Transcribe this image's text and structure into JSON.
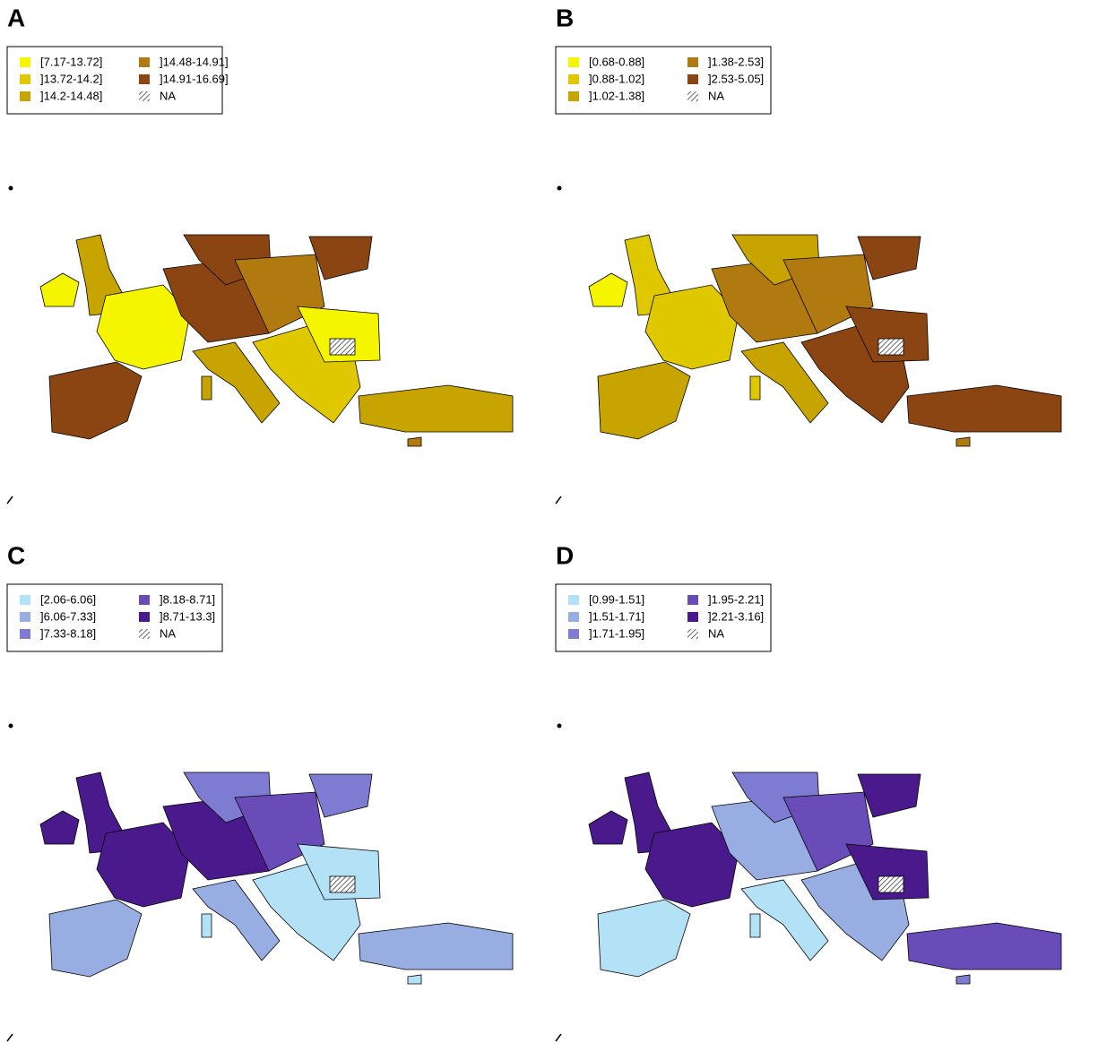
{
  "panels": [
    {
      "label": "A",
      "classes": [
        {
          "label": "[7.17-13.72]",
          "color": "#f5f500"
        },
        {
          "label": "]13.72-14.2]",
          "color": "#e0c800"
        },
        {
          "label": "]14.2-14.48]",
          "color": "#c8a400"
        },
        {
          "label": "]14.48-14.91]",
          "color": "#b07a10"
        },
        {
          "label": "]14.91-16.69]",
          "color": "#8b4513"
        }
      ],
      "na_label": "NA"
    },
    {
      "label": "B",
      "classes": [
        {
          "label": "[0.68-0.88]",
          "color": "#f5f500"
        },
        {
          "label": "]0.88-1.02]",
          "color": "#e0c800"
        },
        {
          "label": "]1.02-1.38]",
          "color": "#c8a400"
        },
        {
          "label": "]1.38-2.53]",
          "color": "#b07a10"
        },
        {
          "label": "]2.53-5.05]",
          "color": "#8b4513"
        }
      ],
      "na_label": "NA"
    },
    {
      "label": "C",
      "classes": [
        {
          "label": "[2.06-6.06]",
          "color": "#b3e2f7"
        },
        {
          "label": "]6.06-7.33]",
          "color": "#98aee3"
        },
        {
          "label": "]7.33-8.18]",
          "color": "#7d7cd2"
        },
        {
          "label": "]8.18-8.71]",
          "color": "#6a4cb8"
        },
        {
          "label": "]8.71-13.3]",
          "color": "#4a1a8c"
        }
      ],
      "na_label": "NA"
    },
    {
      "label": "D",
      "classes": [
        {
          "label": "[0.99-1.51]",
          "color": "#b3e2f7"
        },
        {
          "label": "]1.51-1.71]",
          "color": "#98aee3"
        },
        {
          "label": "]1.71-1.95]",
          "color": "#7d7cd2"
        },
        {
          "label": "]1.95-2.21]",
          "color": "#6a4cb8"
        },
        {
          "label": "]2.21-3.16]",
          "color": "#4a1a8c"
        }
      ],
      "na_label": "NA"
    }
  ]
}
